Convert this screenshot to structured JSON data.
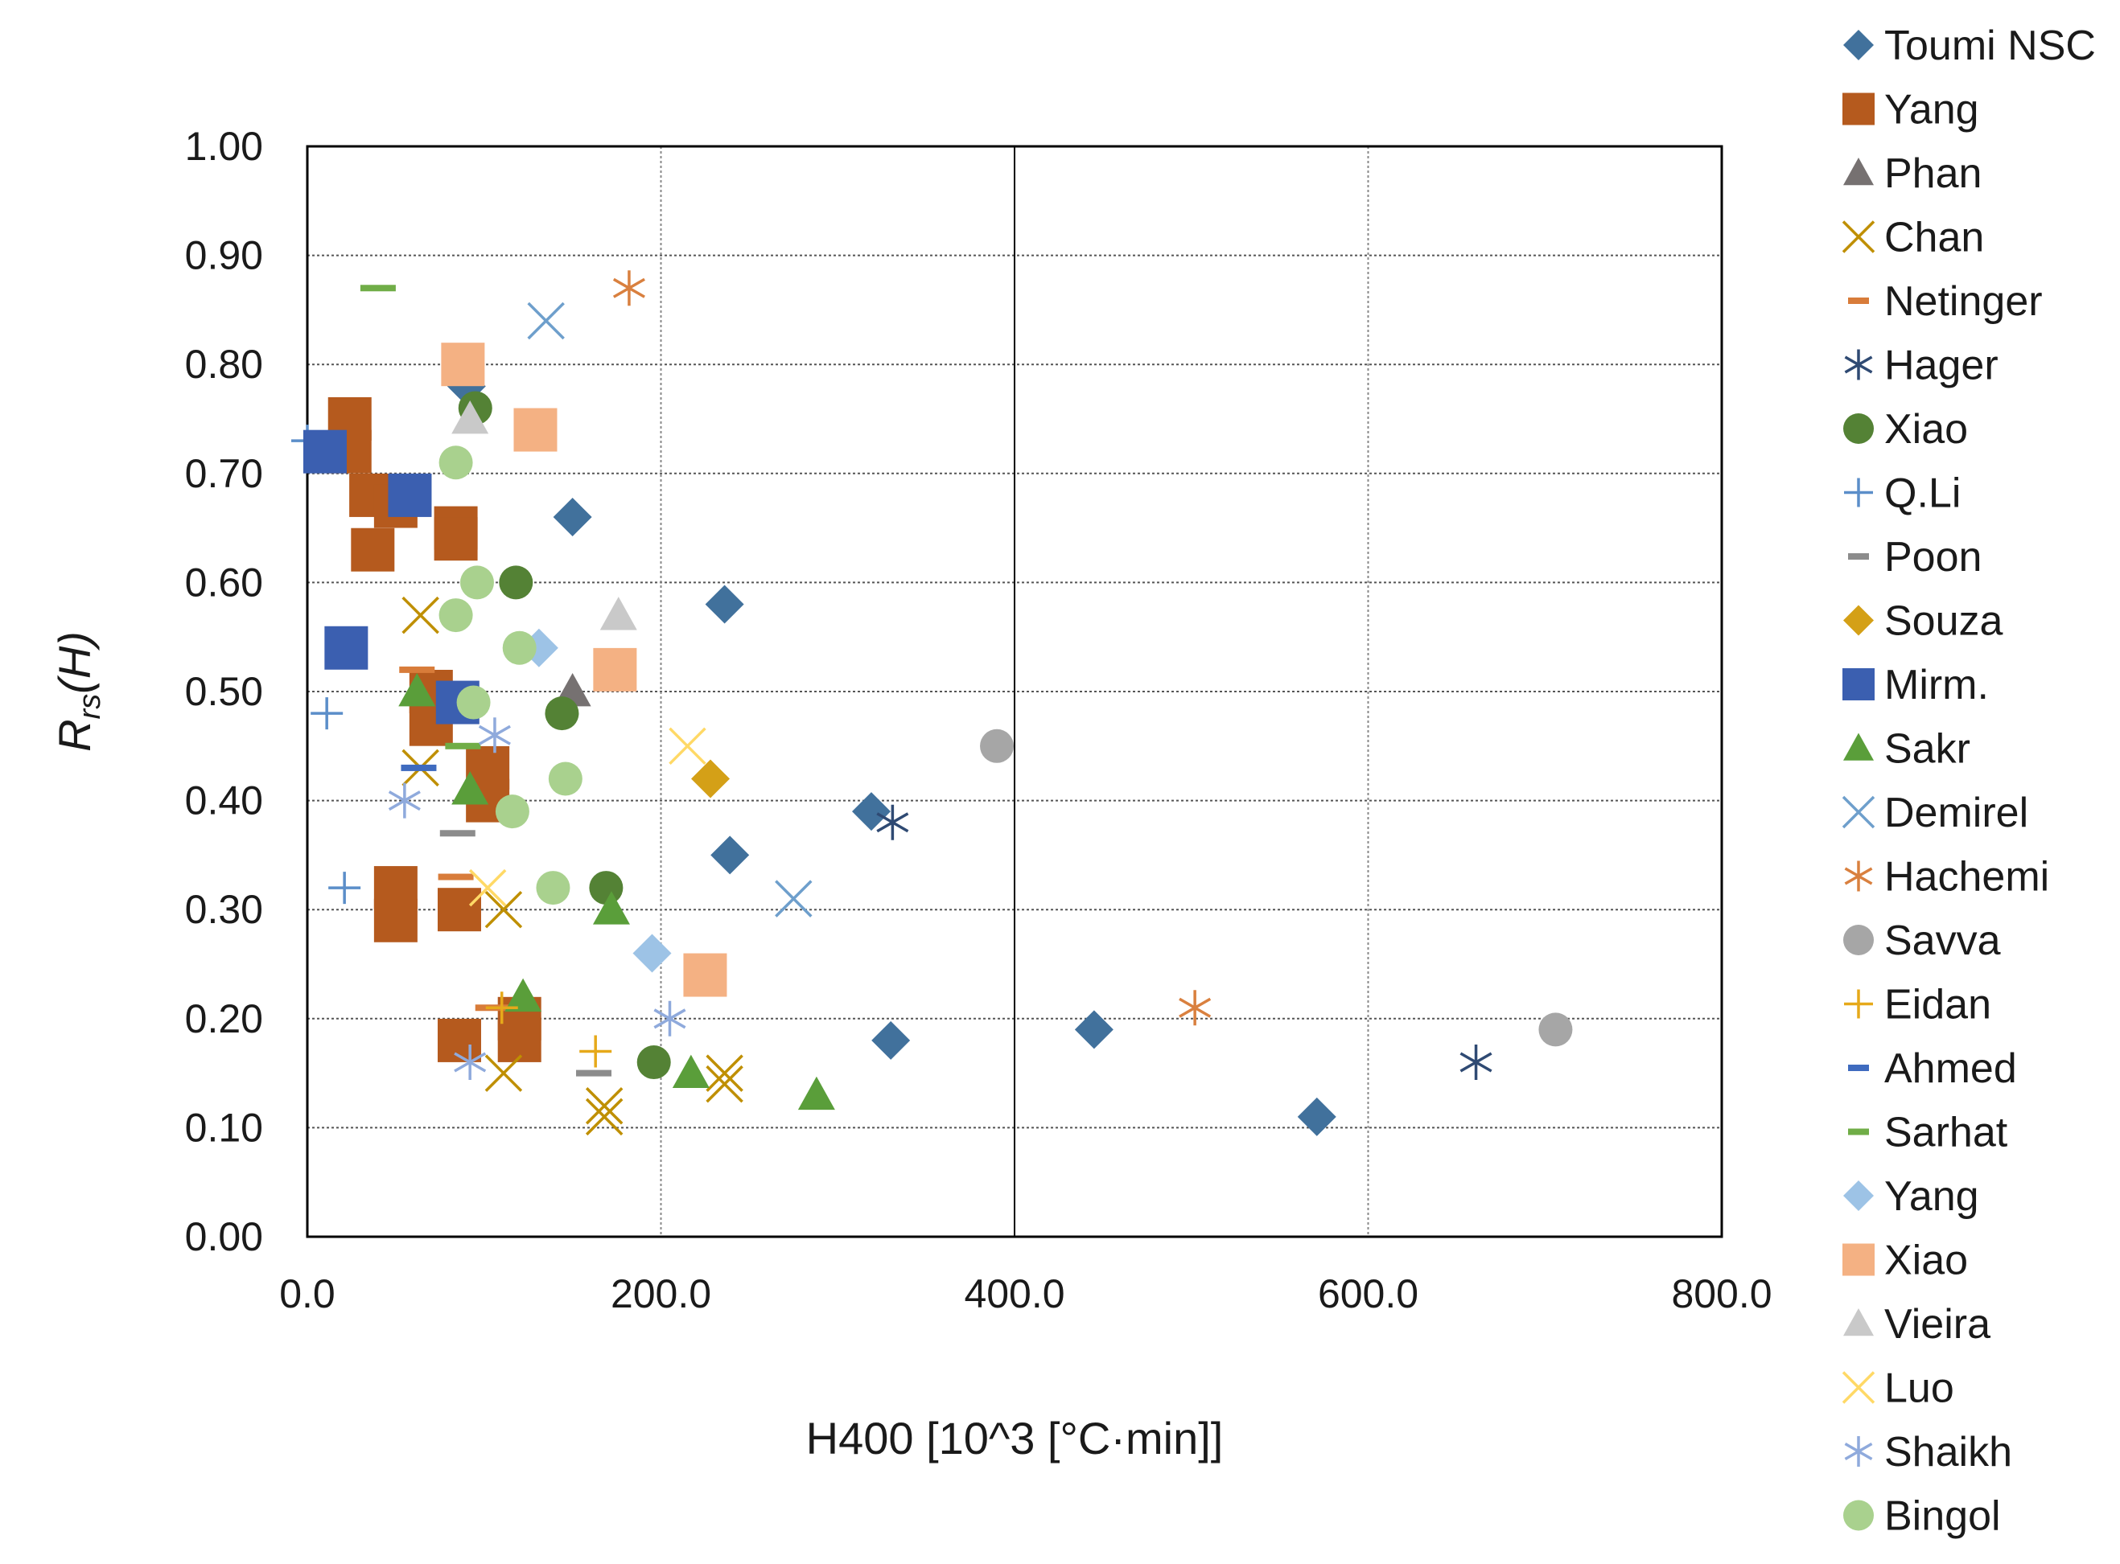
{
  "chart_data": {
    "type": "scatter",
    "title": "",
    "xlabel": "H400 [10^3 [°C·min]]",
    "ylabel": "Rrs(H)",
    "ylabel_main": "R",
    "ylabel_sub": "rs",
    "ylabel_tail": "(H)",
    "xlim": [
      0,
      800
    ],
    "ylim": [
      0,
      1
    ],
    "x_ticks": [
      0,
      200,
      400,
      600,
      800
    ],
    "x_tick_labels": [
      "0.0",
      "200.0",
      "400.0",
      "600.0",
      "800.0"
    ],
    "y_ticks": [
      0,
      0.1,
      0.2,
      0.3,
      0.4,
      0.5,
      0.6,
      0.7,
      0.8,
      0.9,
      1.0
    ],
    "y_tick_labels": [
      "0.00",
      "0.10",
      "0.20",
      "0.30",
      "0.40",
      "0.50",
      "0.60",
      "0.70",
      "0.80",
      "0.90",
      "1.00"
    ],
    "grid": true,
    "legend_position": "right",
    "series": [
      {
        "name": "Toumi NSC",
        "marker": "diamond",
        "color": "#41719c",
        "points": [
          [
            90,
            0.78
          ],
          [
            150,
            0.66
          ],
          [
            236,
            0.58
          ],
          [
            319,
            0.39
          ],
          [
            239,
            0.35
          ],
          [
            330,
            0.18
          ],
          [
            445,
            0.19
          ],
          [
            571,
            0.11
          ]
        ]
      },
      {
        "name": "Yang",
        "marker": "square",
        "color": "#b55a1e",
        "points": [
          [
            24,
            0.75
          ],
          [
            24,
            0.72
          ],
          [
            36,
            0.68
          ],
          [
            50,
            0.67
          ],
          [
            37,
            0.63
          ],
          [
            84,
            0.65
          ],
          [
            84,
            0.64
          ],
          [
            70,
            0.5
          ],
          [
            70,
            0.47
          ],
          [
            102,
            0.43
          ],
          [
            102,
            0.4
          ],
          [
            50,
            0.32
          ],
          [
            50,
            0.29
          ],
          [
            86,
            0.3
          ],
          [
            86,
            0.18
          ],
          [
            120,
            0.2
          ],
          [
            120,
            0.18
          ]
        ]
      },
      {
        "name": "Phan",
        "marker": "triangle",
        "color": "#767171",
        "points": [
          [
            150,
            0.5
          ]
        ]
      },
      {
        "name": "Chan",
        "marker": "x",
        "color": "#bf8f00",
        "points": [
          [
            64,
            0.57
          ],
          [
            64,
            0.43
          ],
          [
            111,
            0.3
          ],
          [
            111,
            0.15
          ],
          [
            168,
            0.12
          ],
          [
            168,
            0.11
          ],
          [
            236,
            0.15
          ],
          [
            236,
            0.14
          ]
        ]
      },
      {
        "name": "Netinger",
        "marker": "dash",
        "color": "#d87c3a",
        "points": [
          [
            62,
            0.52
          ],
          [
            84,
            0.33
          ],
          [
            105,
            0.21
          ]
        ]
      },
      {
        "name": "Hager",
        "marker": "asterisk",
        "color": "#2f4a73",
        "points": [
          [
            331,
            0.38
          ],
          [
            661,
            0.16
          ]
        ]
      },
      {
        "name": "Xiao",
        "marker": "circle",
        "color": "#548235",
        "points": [
          [
            95,
            0.76
          ],
          [
            118,
            0.6
          ],
          [
            144,
            0.48
          ],
          [
            169,
            0.32
          ],
          [
            196,
            0.16
          ]
        ]
      },
      {
        "name": "Q.Li",
        "marker": "plus",
        "color": "#5b8ec9",
        "points": [
          [
            0,
            0.73
          ],
          [
            11,
            0.48
          ],
          [
            21,
            0.32
          ]
        ]
      },
      {
        "name": "Poon",
        "marker": "dash",
        "color": "#8c8c8c",
        "points": [
          [
            85,
            0.37
          ],
          [
            162,
            0.15
          ]
        ]
      },
      {
        "name": "Souza",
        "marker": "diamond",
        "color": "#d4a017",
        "points": [
          [
            228,
            0.42
          ]
        ]
      },
      {
        "name": "Mirm.",
        "marker": "square",
        "color": "#3b5fb0",
        "points": [
          [
            10,
            0.72
          ],
          [
            58,
            0.68
          ],
          [
            22,
            0.54
          ],
          [
            85,
            0.49
          ]
        ]
      },
      {
        "name": "Sakr",
        "marker": "triangle",
        "color": "#5a9e3a",
        "points": [
          [
            62,
            0.5
          ],
          [
            92,
            0.41
          ],
          [
            172,
            0.3
          ],
          [
            122,
            0.22
          ],
          [
            217,
            0.15
          ],
          [
            288,
            0.13
          ]
        ]
      },
      {
        "name": "Demirel",
        "marker": "x",
        "color": "#6e9fcc",
        "points": [
          [
            135,
            0.84
          ],
          [
            275,
            0.31
          ]
        ]
      },
      {
        "name": "Hachemi",
        "marker": "asterisk",
        "color": "#d9803f",
        "points": [
          [
            182,
            0.87
          ],
          [
            502,
            0.21
          ]
        ]
      },
      {
        "name": "Savva",
        "marker": "circle",
        "color": "#a6a6a6",
        "points": [
          [
            390,
            0.45
          ],
          [
            706,
            0.19
          ]
        ]
      },
      {
        "name": "Eidan",
        "marker": "plus",
        "color": "#e6a91a",
        "points": [
          [
            110,
            0.21
          ],
          [
            163,
            0.17
          ]
        ]
      },
      {
        "name": "Ahmed",
        "marker": "dash",
        "color": "#3f6bbf",
        "points": [
          [
            63,
            0.43
          ]
        ]
      },
      {
        "name": "Sarhat",
        "marker": "dash",
        "color": "#70ad47",
        "points": [
          [
            40,
            0.87
          ],
          [
            88,
            0.45
          ]
        ]
      },
      {
        "name": "Yang",
        "marker": "diamond",
        "color": "#9dc3e6",
        "points": [
          [
            131,
            0.54
          ],
          [
            195,
            0.26
          ]
        ]
      },
      {
        "name": "Xiao",
        "marker": "square",
        "color": "#f4b183",
        "points": [
          [
            88,
            0.8
          ],
          [
            129,
            0.74
          ],
          [
            174,
            0.52
          ],
          [
            225,
            0.24
          ]
        ]
      },
      {
        "name": "Vieira",
        "marker": "triangle",
        "color": "#c9c9c9",
        "points": [
          [
            92,
            0.75
          ],
          [
            176,
            0.57
          ]
        ]
      },
      {
        "name": "Luo",
        "marker": "x",
        "color": "#ffd966",
        "points": [
          [
            215,
            0.45
          ],
          [
            102,
            0.32
          ]
        ]
      },
      {
        "name": "Shaikh",
        "marker": "asterisk",
        "color": "#8faadc",
        "points": [
          [
            106,
            0.46
          ],
          [
            55,
            0.4
          ],
          [
            205,
            0.2
          ],
          [
            92,
            0.16
          ]
        ]
      },
      {
        "name": "Bingol",
        "marker": "circle",
        "color": "#a9d18e",
        "points": [
          [
            84,
            0.71
          ],
          [
            96,
            0.6
          ],
          [
            84,
            0.57
          ],
          [
            120,
            0.54
          ],
          [
            94,
            0.49
          ],
          [
            146,
            0.42
          ],
          [
            116,
            0.39
          ],
          [
            139,
            0.32
          ]
        ]
      }
    ]
  }
}
